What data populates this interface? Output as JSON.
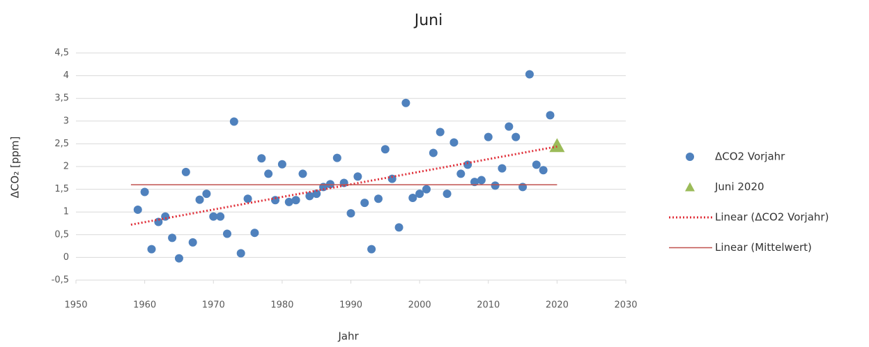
{
  "chart_data": {
    "type": "scatter",
    "title": "Juni",
    "x_label": "Jahr",
    "y_label": "ΔCO₂ [ppm]",
    "xlim": [
      1950,
      2030
    ],
    "xticks": [
      1950,
      1960,
      1970,
      1980,
      1990,
      2000,
      2010,
      2020,
      2030
    ],
    "ylim": [
      -0.5,
      4.5
    ],
    "yticks": [
      {
        "value": -0.5,
        "label": "-0,5"
      },
      0,
      {
        "value": 0.5,
        "label": "0,5"
      },
      1,
      {
        "value": 1.5,
        "label": "1,5"
      },
      2,
      {
        "value": 2.5,
        "label": "2,5"
      },
      3,
      {
        "value": 3.5,
        "label": "3,5"
      },
      4,
      {
        "value": 4.5,
        "label": "4,5"
      }
    ],
    "grid": true,
    "legend": "right",
    "series": [
      {
        "name": "ΔCO2 Vorjahr",
        "color": "#4f81bd",
        "marker": "circle",
        "x": [
          1959,
          1960,
          1961,
          1962,
          1963,
          1964,
          1965,
          1966,
          1967,
          1968,
          1969,
          1970,
          1971,
          1972,
          1973,
          1974,
          1975,
          1976,
          1977,
          1978,
          1979,
          1980,
          1981,
          1982,
          1983,
          1984,
          1985,
          1986,
          1987,
          1988,
          1989,
          1990,
          1991,
          1992,
          1993,
          1994,
          1995,
          1996,
          1997,
          1998,
          1999,
          2000,
          2001,
          2002,
          2003,
          2004,
          2005,
          2006,
          2007,
          2008,
          2009,
          2010,
          2011,
          2012,
          2013,
          2014,
          2015,
          2016,
          2017,
          2018,
          2019
        ],
        "values": [
          1.05,
          1.44,
          0.18,
          0.78,
          0.9,
          0.43,
          -0.02,
          1.88,
          0.33,
          1.27,
          1.4,
          0.9,
          0.9,
          0.52,
          2.99,
          0.09,
          1.29,
          0.54,
          2.18,
          1.84,
          1.26,
          2.05,
          1.22,
          1.26,
          1.84,
          1.35,
          1.4,
          1.55,
          1.61,
          2.19,
          1.64,
          0.97,
          1.78,
          1.2,
          0.18,
          1.29,
          2.38,
          1.73,
          0.66,
          3.4,
          1.31,
          1.4,
          1.5,
          2.3,
          2.76,
          1.4,
          2.53,
          1.84,
          2.04,
          1.66,
          1.7,
          2.65,
          1.58,
          1.96,
          2.88,
          2.65,
          1.55,
          4.03,
          2.04,
          1.92,
          3.13
        ]
      },
      {
        "name": "Juni 2020",
        "color": "#9bbb59",
        "marker": "triangle",
        "x": [
          2020
        ],
        "values": [
          2.44
        ]
      },
      {
        "name": "Linear (ΔCO2 Vorjahr)",
        "color": "#e0303a",
        "marker": "dotted-line",
        "x": [
          1958,
          2020
        ],
        "values": [
          0.72,
          2.44
        ]
      },
      {
        "name": "Linear (Mittelwert)",
        "color": "#c0504d",
        "marker": "line",
        "x": [
          1958,
          2020
        ],
        "values": [
          1.6,
          1.6
        ]
      }
    ]
  }
}
